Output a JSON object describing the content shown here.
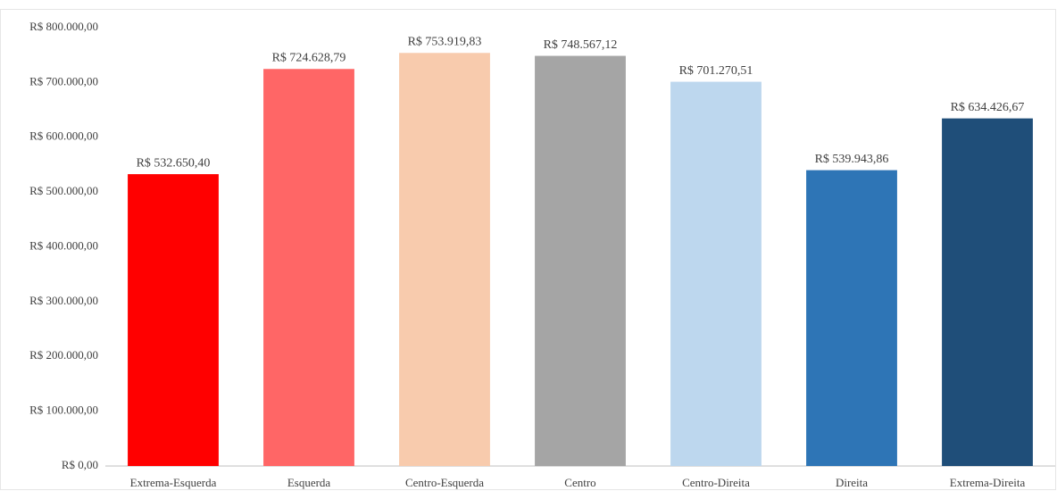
{
  "chart_data": {
    "type": "bar",
    "categories": [
      "Extrema-Esquerda",
      "Esquerda",
      "Centro-Esquerda",
      "Centro",
      "Centro-Direita",
      "Direita",
      "Extrema-Direita"
    ],
    "values": [
      532650.4,
      724628.79,
      753919.83,
      748567.12,
      701270.51,
      539943.86,
      634426.67
    ],
    "value_labels": [
      "R$ 532.650,40",
      "R$ 724.628,79",
      "R$ 753.919,83",
      "R$ 748.567,12",
      "R$ 701.270,51",
      "R$ 539.943,86",
      "R$ 634.426,67"
    ],
    "colors": [
      "#ff0000",
      "#ff6666",
      "#f8cbad",
      "#a5a5a5",
      "#bdd7ee",
      "#2e75b6",
      "#1f4e79"
    ],
    "ylim": [
      0,
      800000
    ],
    "yticks": [
      {
        "value": 0,
        "label": "R$ 0,00"
      },
      {
        "value": 100000,
        "label": "R$ 100.000,00"
      },
      {
        "value": 200000,
        "label": "R$ 200.000,00"
      },
      {
        "value": 300000,
        "label": "R$ 300.000,00"
      },
      {
        "value": 400000,
        "label": "R$ 400.000,00"
      },
      {
        "value": 500000,
        "label": "R$ 500.000,00"
      },
      {
        "value": 600000,
        "label": "R$ 600.000,00"
      },
      {
        "value": 700000,
        "label": "R$ 700.000,00"
      },
      {
        "value": 800000,
        "label": "R$ 800.000,00"
      }
    ],
    "grid": false
  }
}
